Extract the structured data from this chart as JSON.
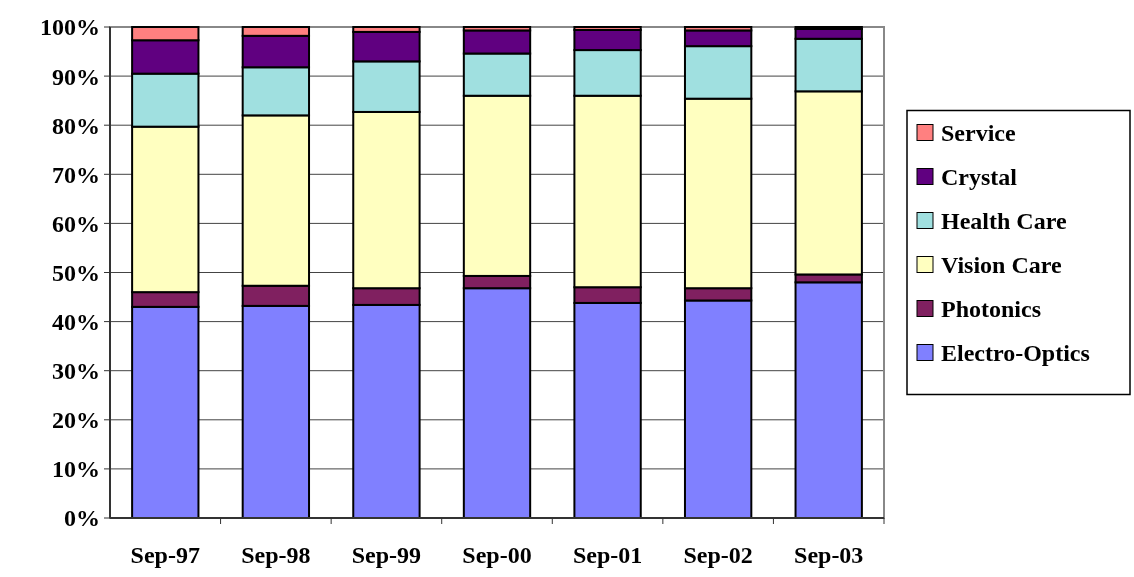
{
  "chart_data": {
    "type": "bar",
    "stacked": true,
    "categories": [
      "Sep-97",
      "Sep-98",
      "Sep-99",
      "Sep-00",
      "Sep-01",
      "Sep-02",
      "Sep-03"
    ],
    "series": [
      {
        "name": "Electro-Optics",
        "color": "#8080ff",
        "values": [
          43,
          43.2,
          43.4,
          46.8,
          43.8,
          44.3,
          48
        ]
      },
      {
        "name": "Photonics",
        "color": "#802060",
        "values": [
          3,
          4.1,
          3.4,
          2.5,
          3.2,
          2.5,
          1.6
        ]
      },
      {
        "name": "Vision Care",
        "color": "#ffffc0",
        "values": [
          33.7,
          34.7,
          35.9,
          36.7,
          39,
          38.6,
          37.3
        ]
      },
      {
        "name": "Health Care",
        "color": "#a0e0e0",
        "values": [
          10.8,
          9.8,
          10.3,
          8.6,
          9.3,
          10.7,
          10.7
        ]
      },
      {
        "name": "Crystal",
        "color": "#600080",
        "values": [
          6.8,
          6.4,
          6,
          4.7,
          4.1,
          3.2,
          2
        ]
      },
      {
        "name": "Service",
        "color": "#ff8080",
        "values": [
          2.7,
          1.8,
          1,
          0.7,
          0.6,
          0.7,
          0.4
        ]
      }
    ],
    "ylim": [
      0,
      100
    ],
    "yticks": [
      {
        "value": 0,
        "label": "0%"
      },
      {
        "value": 10,
        "label": "10%"
      },
      {
        "value": 20,
        "label": "20%"
      },
      {
        "value": 30,
        "label": "30%"
      },
      {
        "value": 40,
        "label": "40%"
      },
      {
        "value": 50,
        "label": "50%"
      },
      {
        "value": 60,
        "label": "60%"
      },
      {
        "value": 70,
        "label": "70%"
      },
      {
        "value": 80,
        "label": "80%"
      },
      {
        "value": 90,
        "label": "90%"
      },
      {
        "value": 100,
        "label": "100%"
      }
    ],
    "grid": "y",
    "legend": "right"
  }
}
